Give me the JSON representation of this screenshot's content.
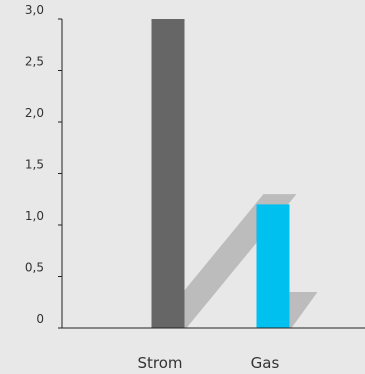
{
  "chart_data": {
    "type": "bar",
    "categories": [
      "Strom",
      "Gas"
    ],
    "values": [
      3.0,
      1.2
    ],
    "ylim": [
      0,
      3.0
    ],
    "yticks": [
      {
        "value": 0,
        "label": "0"
      },
      {
        "value": 0.5,
        "label": "0,5"
      },
      {
        "value": 1.0,
        "label": "1,0"
      },
      {
        "value": 1.5,
        "label": "1,5"
      },
      {
        "value": 2.0,
        "label": "2,0"
      },
      {
        "value": 2.5,
        "label": "2,5"
      },
      {
        "value": 3.0,
        "label": "3,0"
      }
    ],
    "grid": false,
    "legend": "none",
    "bar_colors": [
      "#666666",
      "#00c0f0"
    ],
    "shadow_color": "#bcbcbc",
    "axis_color": "#222222",
    "background": "#e8e8e8"
  }
}
